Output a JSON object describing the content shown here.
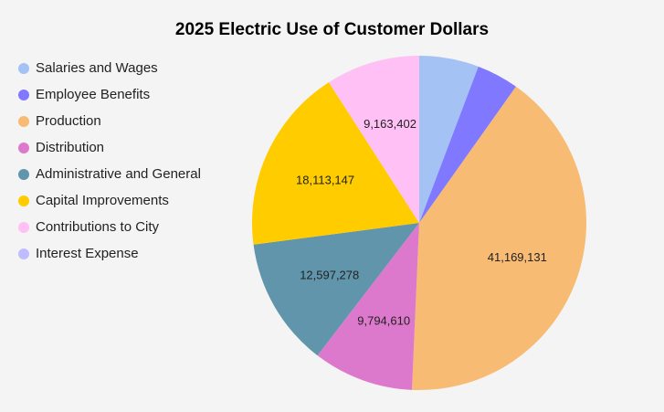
{
  "chart_data": {
    "type": "pie",
    "title": "2025 Electric Use of Customer Dollars",
    "legend_position": "left",
    "slices": [
      {
        "label": "Salaries and Wages",
        "value": 5800000,
        "color": "#a4c2f4",
        "show_label": false,
        "display": ""
      },
      {
        "label": "Employee Benefits",
        "value": 4100000,
        "color": "#8079ff",
        "show_label": false,
        "display": ""
      },
      {
        "label": "Production",
        "value": 41169131,
        "color": "#f7bb73",
        "show_label": true,
        "display": "41,169,131"
      },
      {
        "label": "Distribution",
        "value": 9794610,
        "color": "#dd79cc",
        "show_label": true,
        "display": "9,794,610"
      },
      {
        "label": "Administrative and General",
        "value": 12597278,
        "color": "#6195ab",
        "show_label": true,
        "display": "12,597,278"
      },
      {
        "label": "Capital Improvements",
        "value": 18113147,
        "color": "#ffcc00",
        "show_label": true,
        "display": "18,113,147"
      },
      {
        "label": "Contributions to City",
        "value": 9163402,
        "color": "#ffc0f5",
        "show_label": true,
        "display": "9,163,402"
      },
      {
        "label": "Interest Expense",
        "value": 0,
        "color": "#bfbdff",
        "show_label": false,
        "display": ""
      }
    ]
  }
}
